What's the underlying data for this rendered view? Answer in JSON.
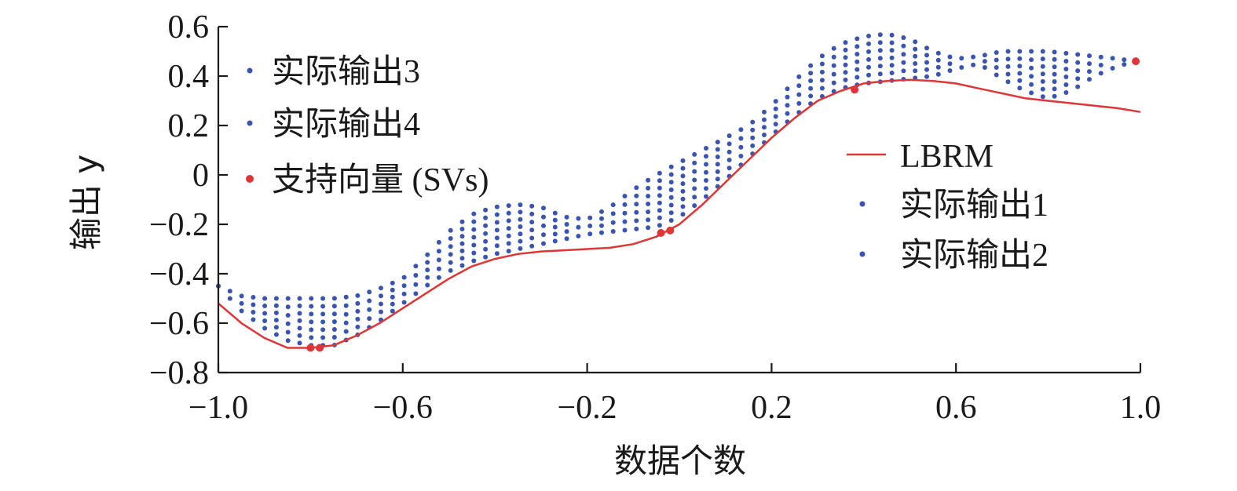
{
  "chart_data": {
    "type": "scatter",
    "xlabel": "数据个数",
    "ylabel": "输出 y",
    "xlim": [
      -1.0,
      1.0
    ],
    "ylim": [
      -0.8,
      0.6
    ],
    "xticks": [
      -1.0,
      -0.6,
      -0.2,
      0.2,
      0.6,
      1.0
    ],
    "xtick_labels": [
      "−1.0",
      "−0.6",
      "−0.2",
      "0.2",
      "0.6",
      "1.0"
    ],
    "yticks": [
      0.6,
      0.4,
      0.2,
      0,
      -0.2,
      -0.4,
      -0.6,
      -0.8
    ],
    "ytick_labels": [
      "0.6",
      "0.4",
      "0.2",
      "0",
      "−0.2",
      "−0.4",
      "−0.6",
      "−0.8"
    ],
    "colors": {
      "lbrm": "#e03535",
      "actual": "#3a55b0",
      "svs": "#e03535"
    },
    "legend_left": [
      "实际输出3",
      "实际输出4",
      "支持向量 (SVs)"
    ],
    "legend_right": [
      "LBRM",
      "实际输出1",
      "实际输出2"
    ],
    "series": [
      {
        "name": "LBRM",
        "kind": "line",
        "x": [
          -1.0,
          -0.95,
          -0.9,
          -0.85,
          -0.8,
          -0.75,
          -0.7,
          -0.65,
          -0.6,
          -0.55,
          -0.5,
          -0.45,
          -0.4,
          -0.35,
          -0.3,
          -0.25,
          -0.2,
          -0.15,
          -0.1,
          -0.05,
          0.0,
          0.05,
          0.1,
          0.15,
          0.2,
          0.25,
          0.3,
          0.35,
          0.4,
          0.45,
          0.5,
          0.55,
          0.6,
          0.65,
          0.7,
          0.75,
          0.8,
          0.85,
          0.9,
          0.95,
          1.0
        ],
        "y": [
          -0.52,
          -0.6,
          -0.66,
          -0.7,
          -0.7,
          -0.69,
          -0.65,
          -0.6,
          -0.54,
          -0.48,
          -0.42,
          -0.37,
          -0.34,
          -0.32,
          -0.31,
          -0.305,
          -0.3,
          -0.295,
          -0.28,
          -0.25,
          -0.2,
          -0.12,
          -0.03,
          0.06,
          0.15,
          0.23,
          0.3,
          0.34,
          0.37,
          0.38,
          0.385,
          0.38,
          0.37,
          0.35,
          0.33,
          0.31,
          0.3,
          0.29,
          0.28,
          0.27,
          0.255
        ]
      },
      {
        "name": "支持向量 (SVs)",
        "kind": "points",
        "x": [
          -0.8,
          -0.78,
          -0.04,
          -0.02,
          0.38,
          0.99
        ],
        "y": [
          -0.7,
          -0.7,
          -0.235,
          -0.225,
          0.345,
          0.46
        ]
      },
      {
        "name": "实际输出",
        "kind": "band",
        "columns": 80,
        "x_start": -1.0,
        "x_end": 0.99,
        "profile_x": [
          -1.0,
          -0.95,
          -0.9,
          -0.85,
          -0.8,
          -0.75,
          -0.7,
          -0.65,
          -0.6,
          -0.55,
          -0.5,
          -0.45,
          -0.4,
          -0.35,
          -0.3,
          -0.25,
          -0.2,
          -0.15,
          -0.1,
          -0.05,
          0.0,
          0.05,
          0.1,
          0.15,
          0.2,
          0.25,
          0.3,
          0.35,
          0.4,
          0.45,
          0.5,
          0.55,
          0.6,
          0.65,
          0.7,
          0.75,
          0.8,
          0.85,
          0.9,
          0.95,
          0.99
        ],
        "upper": [
          -0.45,
          -0.49,
          -0.5,
          -0.5,
          -0.5,
          -0.5,
          -0.49,
          -0.46,
          -0.42,
          -0.33,
          -0.23,
          -0.16,
          -0.13,
          -0.12,
          -0.13,
          -0.17,
          -0.18,
          -0.13,
          -0.06,
          0.0,
          0.05,
          0.1,
          0.15,
          0.2,
          0.28,
          0.38,
          0.47,
          0.53,
          0.56,
          0.57,
          0.55,
          0.5,
          0.47,
          0.48,
          0.5,
          0.5,
          0.5,
          0.49,
          0.48,
          0.47,
          0.46
        ],
        "lower": [
          -0.45,
          -0.55,
          -0.62,
          -0.67,
          -0.69,
          -0.69,
          -0.65,
          -0.59,
          -0.52,
          -0.45,
          -0.39,
          -0.35,
          -0.32,
          -0.3,
          -0.28,
          -0.26,
          -0.24,
          -0.23,
          -0.22,
          -0.21,
          -0.17,
          -0.1,
          -0.02,
          0.07,
          0.16,
          0.24,
          0.31,
          0.35,
          0.37,
          0.38,
          0.39,
          0.4,
          0.43,
          0.45,
          0.39,
          0.34,
          0.31,
          0.34,
          0.4,
          0.44,
          0.46
        ]
      }
    ]
  }
}
